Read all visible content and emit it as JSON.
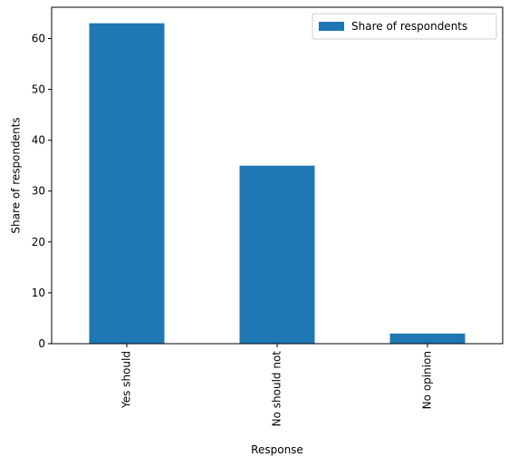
{
  "chart_data": {
    "type": "bar",
    "categories": [
      "Yes should",
      "No should not",
      "No opinion"
    ],
    "series": [
      {
        "name": "Share of respondents",
        "values": [
          63,
          35,
          2
        ]
      }
    ],
    "xlabel": "Response",
    "ylabel": "Share of respondents",
    "ylim": [
      0,
      66.15
    ],
    "yticks": [
      0,
      10,
      20,
      30,
      40,
      50,
      60
    ],
    "grid": false,
    "legend_position": "top-right",
    "bar_color": "#1f77b4"
  }
}
